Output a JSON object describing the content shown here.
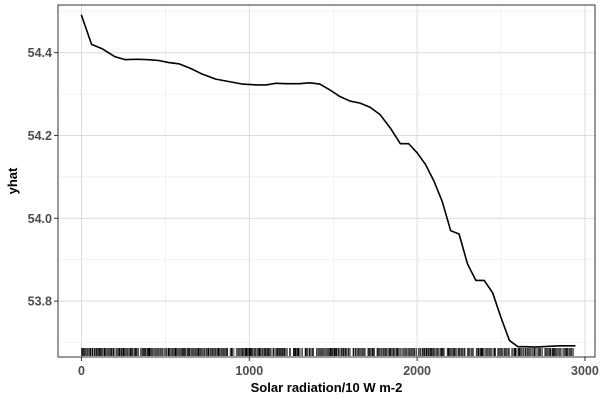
{
  "chart_data": {
    "type": "line",
    "title": "",
    "xlabel": "Solar radiation/10 W m-2",
    "ylabel": "yhat",
    "xlim": [
      -140,
      3060
    ],
    "ylim": [
      53.665,
      54.515
    ],
    "x_ticks": [
      0,
      1000,
      2000,
      3000
    ],
    "y_ticks": [
      53.8,
      54.0,
      54.2,
      54.4
    ],
    "x_tick_labels": [
      "0",
      "1000",
      "2000",
      "3000"
    ],
    "y_tick_labels": [
      "53.8",
      "54.0",
      "54.2",
      "54.4"
    ],
    "grid": true,
    "rug": true,
    "rug_range": [
      0,
      2940
    ],
    "legend": "none",
    "line_color": "#000000",
    "series": [
      {
        "x": [
          0,
          60,
          120,
          200,
          260,
          330,
          400,
          460,
          520,
          580,
          650,
          720,
          800,
          880,
          960,
          1040,
          1100,
          1160,
          1220,
          1300,
          1360,
          1420,
          1480,
          1540,
          1600,
          1660,
          1720,
          1780,
          1840,
          1900,
          1950,
          2000,
          2050,
          2100,
          2150,
          2200,
          2250,
          2300,
          2350,
          2400,
          2450,
          2500,
          2550,
          2600,
          2650,
          2700,
          2750,
          2800,
          2850,
          2900,
          2940
        ],
        "y": [
          54.49,
          54.42,
          54.41,
          54.39,
          54.383,
          54.384,
          54.383,
          54.381,
          54.376,
          54.373,
          54.362,
          54.348,
          54.336,
          54.33,
          54.324,
          54.322,
          54.322,
          54.326,
          54.325,
          54.325,
          54.327,
          54.324,
          54.31,
          54.294,
          54.283,
          54.278,
          54.268,
          54.25,
          54.218,
          54.18,
          54.18,
          54.158,
          54.13,
          54.09,
          54.04,
          53.97,
          53.962,
          53.89,
          53.85,
          53.85,
          53.82,
          53.76,
          53.705,
          53.69,
          53.69,
          53.689,
          53.69,
          53.691,
          53.692,
          53.692,
          53.692
        ]
      }
    ]
  }
}
